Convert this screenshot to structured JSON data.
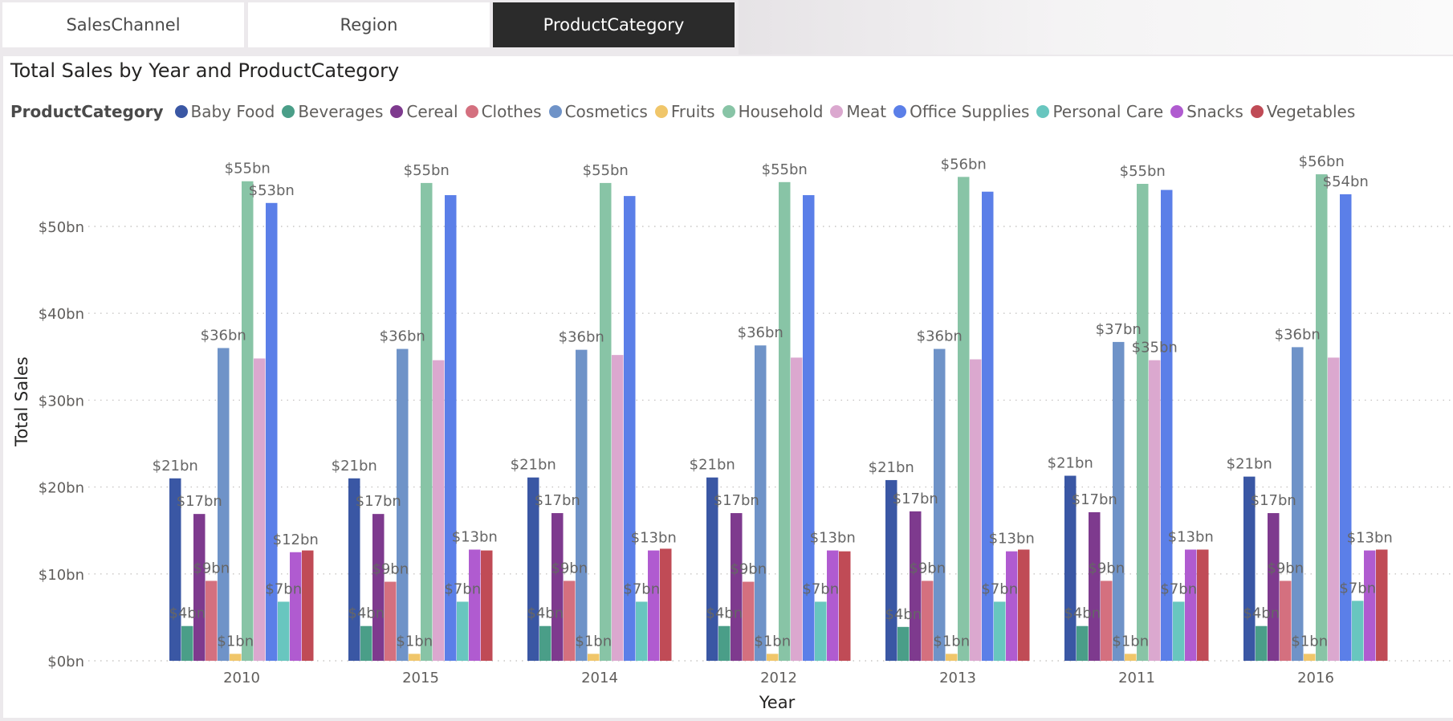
{
  "tabs": [
    {
      "label": "SalesChannel",
      "active": false
    },
    {
      "label": "Region",
      "active": false
    },
    {
      "label": "ProductCategory",
      "active": true
    }
  ],
  "chart_data": {
    "type": "bar",
    "title": "Total Sales by Year and ProductCategory",
    "xlabel": "Year",
    "ylabel": "Total Sales",
    "ylim": [
      0,
      58
    ],
    "yunit": "bn",
    "yticks": [
      "$0bn",
      "$10bn",
      "$20bn",
      "$30bn",
      "$40bn",
      "$50bn"
    ],
    "ytick_values": [
      0,
      10,
      20,
      30,
      40,
      50
    ],
    "grid": true,
    "legend": {
      "title": "ProductCategory",
      "position": "top-left"
    },
    "categories": [
      "2010",
      "2015",
      "2014",
      "2012",
      "2013",
      "2011",
      "2016"
    ],
    "series": [
      {
        "name": "Baby Food",
        "color": "#3a57a4",
        "values": [
          21.0,
          21.0,
          21.1,
          21.1,
          20.8,
          21.3,
          21.2
        ],
        "labels": [
          "$21bn",
          "$21bn",
          "$21bn",
          "$21bn",
          "$21bn",
          "$21bn",
          "$21bn"
        ]
      },
      {
        "name": "Beverages",
        "color": "#4a9e88",
        "values": [
          4.0,
          4.0,
          4.0,
          4.0,
          3.9,
          4.0,
          4.0
        ],
        "labels": [
          "$4bn",
          "$4bn",
          "$4bn",
          "$4bn",
          "$4bn",
          "$4bn",
          "$4bn"
        ]
      },
      {
        "name": "Cereal",
        "color": "#7e3a8e",
        "values": [
          16.9,
          16.9,
          17.0,
          17.0,
          17.2,
          17.1,
          17.0
        ],
        "labels": [
          "$17bn",
          "$17bn",
          "$17bn",
          "$17bn",
          "$17bn",
          "$17bn",
          "$17bn"
        ]
      },
      {
        "name": "Clothes",
        "color": "#d4707f",
        "values": [
          9.2,
          9.1,
          9.2,
          9.1,
          9.2,
          9.2,
          9.2
        ],
        "labels": [
          "$9bn",
          "$9bn",
          "$9bn",
          "$9bn",
          "$9bn",
          "$9bn",
          "$9bn"
        ]
      },
      {
        "name": "Cosmetics",
        "color": "#6f93c8",
        "values": [
          36.0,
          35.9,
          35.8,
          36.3,
          35.9,
          36.7,
          36.1
        ],
        "labels": [
          "$36bn",
          "$36bn",
          "$36bn",
          "$36bn",
          "$36bn",
          "$37bn",
          "$36bn"
        ]
      },
      {
        "name": "Fruits",
        "color": "#f0c66a",
        "values": [
          0.8,
          0.8,
          0.8,
          0.8,
          0.8,
          0.8,
          0.8
        ],
        "labels": [
          "$1bn",
          "$1bn",
          "$1bn",
          "$1bn",
          "$1bn",
          "$1bn",
          "$1bn"
        ]
      },
      {
        "name": "Household",
        "color": "#88c4a6",
        "values": [
          55.2,
          55.0,
          55.0,
          55.1,
          55.7,
          54.9,
          56.0
        ],
        "labels": [
          "$55bn",
          "$55bn",
          "$55bn",
          "$55bn",
          "$56bn",
          "$55bn",
          "$56bn"
        ]
      },
      {
        "name": "Meat",
        "color": "#dba8cf",
        "values": [
          34.8,
          34.6,
          35.2,
          34.9,
          34.7,
          34.6,
          34.9
        ],
        "labels": [
          "",
          "",
          "",
          "",
          "",
          "$35bn",
          ""
        ]
      },
      {
        "name": "Office Supplies",
        "color": "#5b7fe8",
        "values": [
          52.7,
          53.6,
          53.5,
          53.6,
          54.0,
          54.2,
          53.7
        ],
        "labels": [
          "$53bn",
          "",
          "",
          "",
          "",
          "",
          "$54bn"
        ]
      },
      {
        "name": "Personal Care",
        "color": "#68c6bf",
        "values": [
          6.8,
          6.8,
          6.8,
          6.8,
          6.8,
          6.8,
          6.9
        ],
        "labels": [
          "$7bn",
          "$7bn",
          "$7bn",
          "$7bn",
          "$7bn",
          "$7bn",
          "$7bn"
        ]
      },
      {
        "name": "Snacks",
        "color": "#b05bd0",
        "values": [
          12.5,
          12.8,
          12.7,
          12.7,
          12.6,
          12.8,
          12.7
        ],
        "labels": [
          "$12bn",
          "$13bn",
          "$13bn",
          "$13bn",
          "$13bn",
          "$13bn",
          "$13bn"
        ]
      },
      {
        "name": "Vegetables",
        "color": "#c04b56",
        "values": [
          12.7,
          12.7,
          12.9,
          12.6,
          12.8,
          12.8,
          12.8
        ],
        "labels": [
          "",
          "",
          "",
          "",
          "",
          "",
          ""
        ]
      }
    ]
  }
}
